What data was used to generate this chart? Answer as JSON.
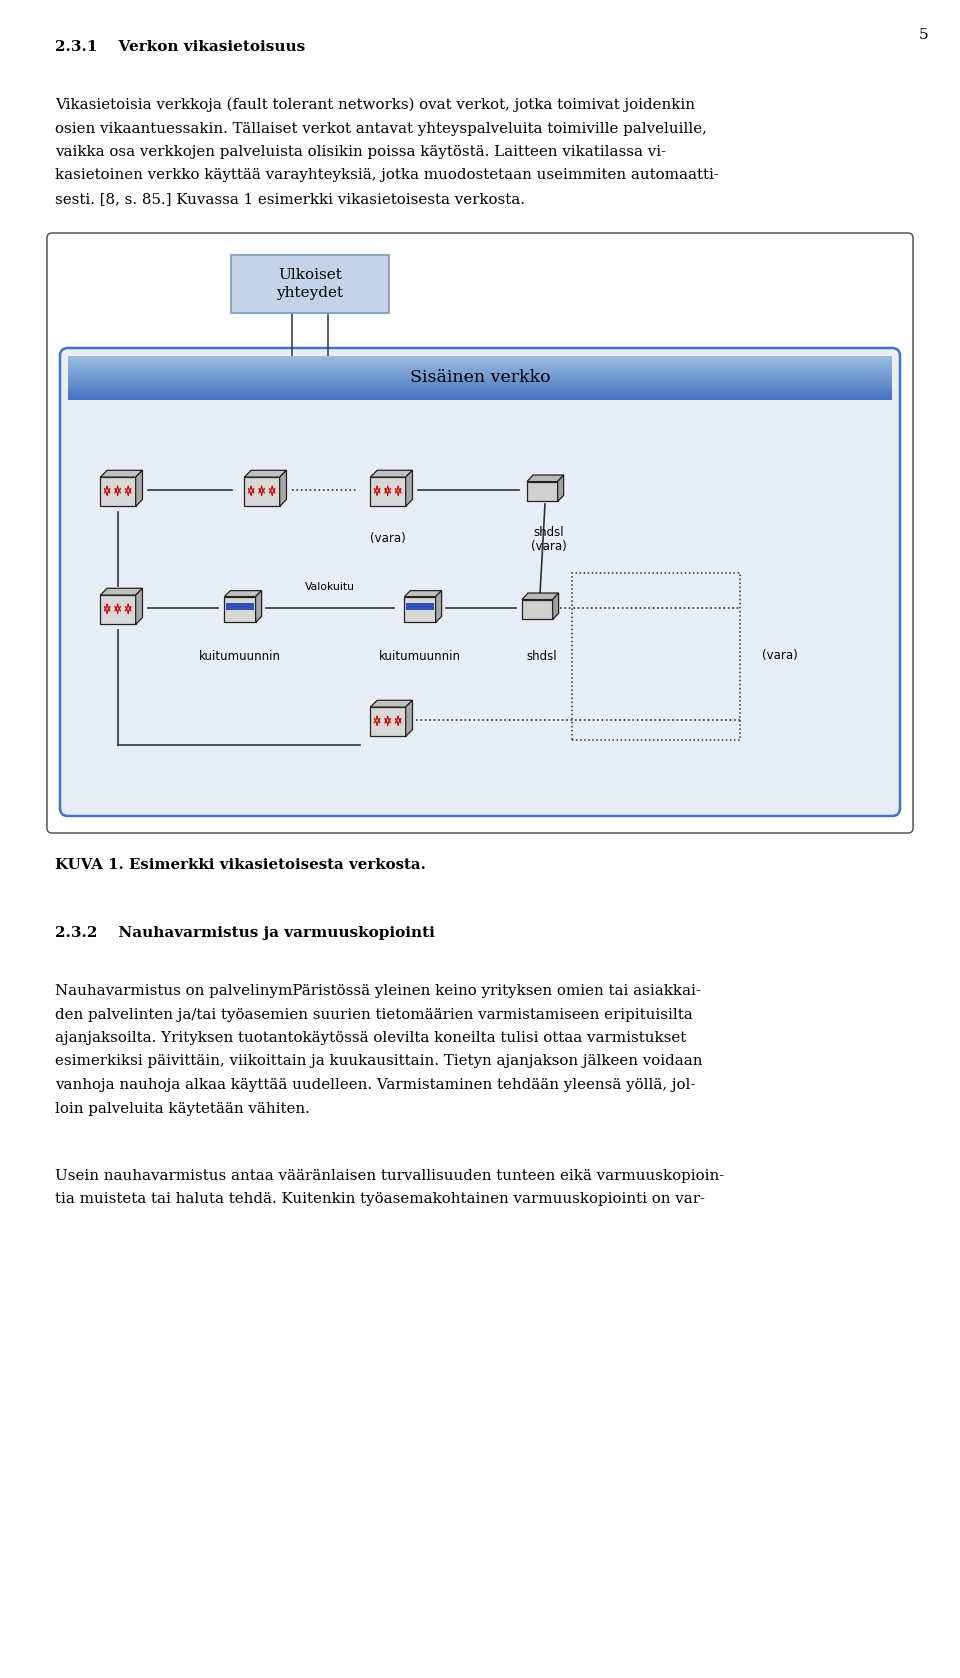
{
  "page_number": "5",
  "section_title": "2.3.1    Verkon vikasietoisuus",
  "para1_lines": [
    "Vikasietoisia verkkoja (fault tolerant networks) ovat verkot, jotka toimivat joidenkin",
    "osien vikaantuessakin. Tällaiset verkot antavat yhteyspalveluita toimiville palveluille,",
    "vaikka osa verkkojen palveluista olisikin poissa käytöstä. Laitteen vikatilassa vi-",
    "kasietoinen verkko käyttää varayhteyksiä, jotka muodostetaan useimmiten automaatti-",
    "sesti. [8, s. 85.] Kuvassa 1 esimerkki vikasietoisesta verkosta."
  ],
  "figure_caption": "KUVA 1. Esimerkki vikasietoisesta verkosta.",
  "section2_title": "2.3.2    Nauhavarmistus ja varmuuskopiointi",
  "para2_lines": [
    "Nauhavarmistus on palvelinymPäristössä yleinen keino yrityksen omien tai asiakkai-",
    "den palvelinten ja/tai työasemien suurien tietomäärien varmistamiseen eripituisilta",
    "ajanjaksoilta. Yrityksen tuotantokäytössä olevilta koneilta tulisi ottaa varmistukset",
    "esimerkiksi päivittäin, viikoittain ja kuukausittain. Tietyn ajanjakson jälkeen voidaan",
    "vanhoja nauhoja alkaa käyttää uudelleen. Varmistaminen tehdään yleensä yöllä, jol-",
    "loin palveluita käytetään vähiten."
  ],
  "para3_lines": [
    "Usein nauhavarmistus antaa vääränlaisen turvallisuuden tunteen eikä varmuuskopioin-",
    "tia muisteta tai haluta tehdä. Kuitenkin työasemakohtainen varmuuskopiointi on var-"
  ],
  "bg_color": "#ffffff",
  "text_color": "#000000",
  "ulkoiset_fill": "#c5d3e8",
  "ulkoiset_edge": "#7a9abf",
  "sisainen_edge": "#4472c4",
  "sisainen_fill": "#e8eef8",
  "header_color_top": "#4472c4",
  "header_color_bot": "#8ab4d8",
  "diag_outer_edge": "#555555",
  "line_color": "#333333",
  "arrow_color": "#cc0000",
  "device_front": "#d8d8d8",
  "device_top": "#c0c0c0",
  "device_right": "#a8a8a8",
  "fiber_stripe": "#3050bb"
}
